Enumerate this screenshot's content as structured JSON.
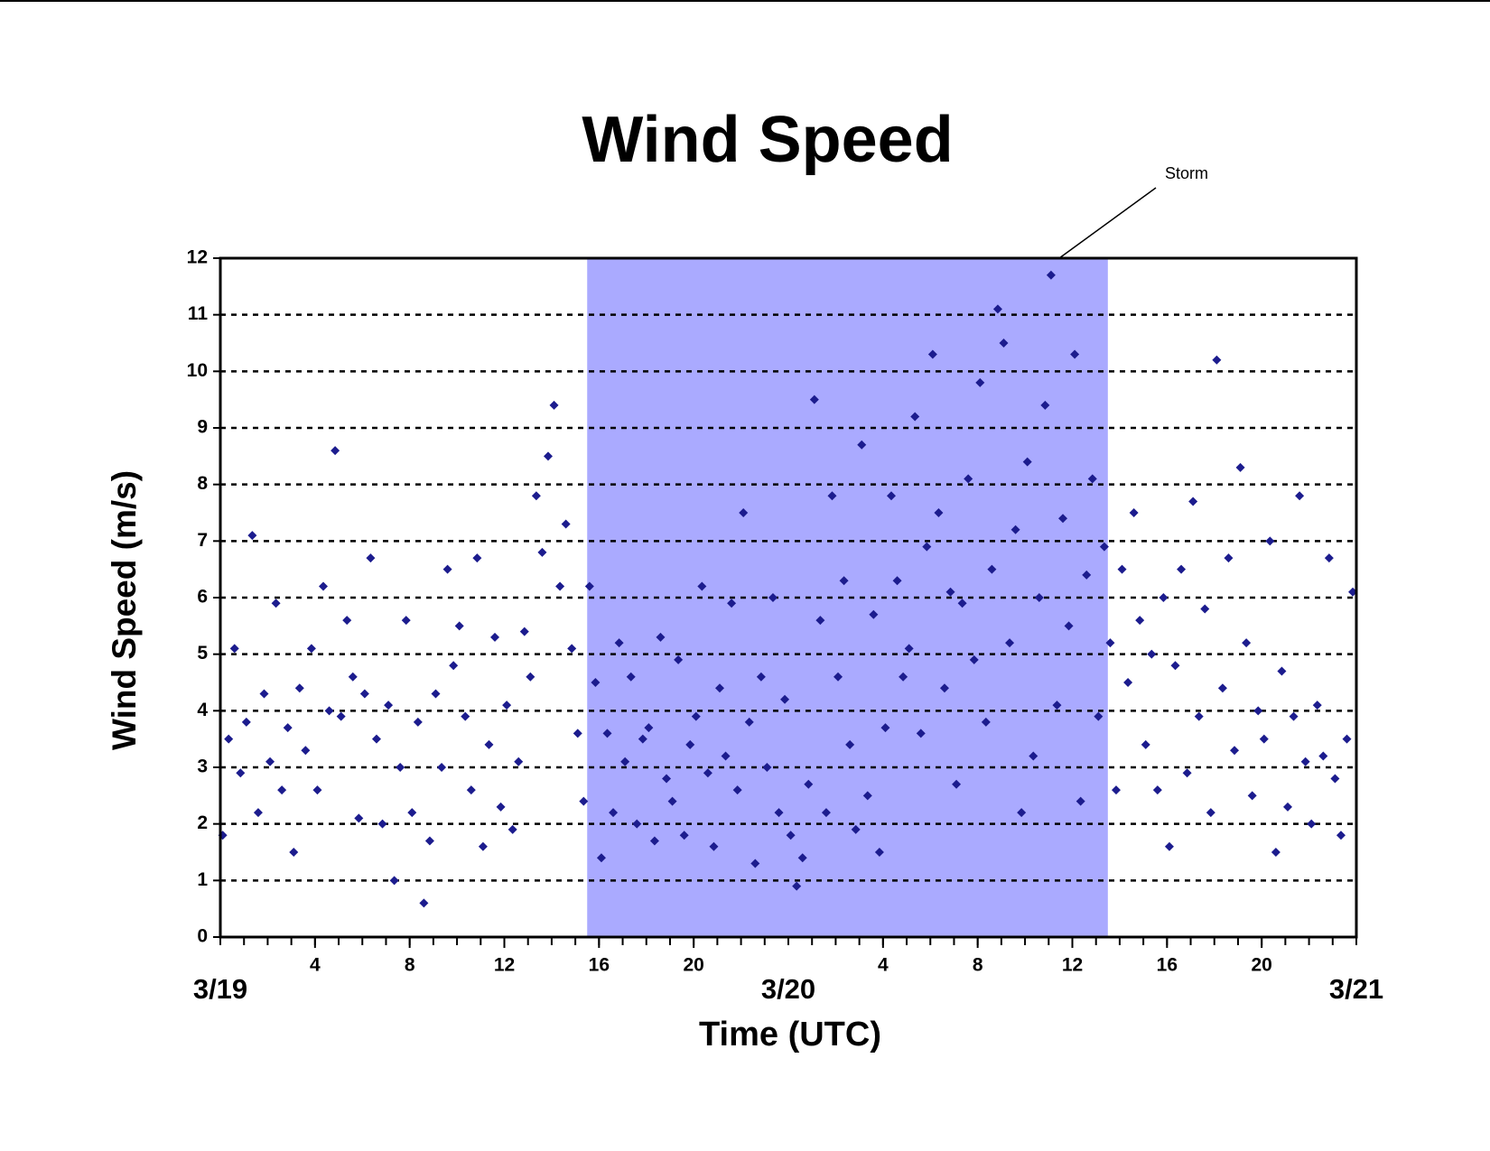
{
  "chart_data": {
    "type": "scatter",
    "title": "Wind Speed",
    "xlabel": "Time (UTC)",
    "ylabel": "Wind Speed (m/s)",
    "xlim": [
      0,
      48
    ],
    "ylim": [
      0,
      12
    ],
    "yticks": [
      0,
      1,
      2,
      3,
      4,
      5,
      6,
      7,
      8,
      9,
      10,
      11,
      12
    ],
    "xticks": [
      4,
      8,
      12,
      {
        "value": 16,
        "label": "16"
      },
      20,
      {
        "value": 28,
        "label": "4"
      },
      {
        "value": 32,
        "label": "8"
      },
      {
        "value": 36,
        "label": "12"
      },
      {
        "value": 40,
        "label": "16"
      },
      {
        "value": 44,
        "label": "20"
      }
    ],
    "xminor_step": 1,
    "date_ticks": [
      {
        "value": 0,
        "label": "3/19"
      },
      {
        "value": 24,
        "label": "3/20"
      },
      {
        "value": 48,
        "label": "3/21"
      }
    ],
    "grid": true,
    "shaded_region": {
      "label": "Storm",
      "x": [
        15.5,
        37.5
      ],
      "color": "#aaaaff"
    },
    "series": [
      {
        "color": "#1c1c8e",
        "x": [
          0.1,
          0.35,
          0.6,
          0.85,
          1.1,
          1.35,
          1.6,
          1.85,
          2.1,
          2.35,
          2.6,
          2.85,
          3.1,
          3.35,
          3.6,
          3.85,
          4.1,
          4.35,
          4.6,
          4.85,
          5.1,
          5.35,
          5.6,
          5.85,
          6.1,
          6.35,
          6.6,
          6.85,
          7.1,
          7.35,
          7.6,
          7.85,
          8.1,
          8.35,
          8.6,
          8.85,
          9.1,
          9.35,
          9.6,
          9.85,
          10.1,
          10.35,
          10.6,
          10.85,
          11.1,
          11.35,
          11.6,
          11.85,
          12.1,
          12.35,
          12.6,
          12.85,
          13.1,
          13.35,
          13.6,
          13.85,
          14.1,
          14.35,
          14.6,
          14.85,
          15.1,
          15.35,
          15.6,
          15.85,
          16.1,
          16.35,
          16.6,
          16.85,
          17.1,
          17.35,
          17.6,
          17.85,
          18.1,
          18.35,
          18.6,
          18.85,
          19.1,
          19.35,
          19.6,
          19.85,
          20.1,
          20.35,
          20.6,
          20.85,
          21.1,
          21.35,
          21.6,
          21.85,
          22.1,
          22.35,
          22.6,
          22.85,
          23.1,
          23.35,
          23.6,
          23.85,
          24.1,
          24.35,
          24.6,
          24.85,
          25.1,
          25.35,
          25.6,
          25.85,
          26.1,
          26.35,
          26.6,
          26.85,
          27.1,
          27.35,
          27.6,
          27.85,
          28.1,
          28.35,
          28.6,
          28.85,
          29.1,
          29.35,
          29.6,
          29.85,
          30.1,
          30.35,
          30.6,
          30.85,
          31.1,
          31.35,
          31.6,
          31.85,
          32.1,
          32.35,
          32.6,
          32.85,
          33.1,
          33.35,
          33.6,
          33.85,
          34.1,
          34.35,
          34.6,
          34.85,
          35.1,
          35.35,
          35.6,
          35.85,
          36.1,
          36.35,
          36.6,
          36.85,
          37.1,
          37.35,
          37.6,
          37.85,
          38.1,
          38.35,
          38.6,
          38.85,
          39.1,
          39.35,
          39.6,
          39.85,
          40.1,
          40.35,
          40.6,
          40.85,
          41.1,
          41.35,
          41.6,
          41.85,
          42.1,
          42.35,
          42.6,
          42.85,
          43.1,
          43.35,
          43.6,
          43.85,
          44.1,
          44.35,
          44.6,
          44.85,
          45.1,
          45.35,
          45.6,
          45.85,
          46.1,
          46.35,
          46.6,
          46.85,
          47.1,
          47.35,
          47.6,
          47.85
        ],
        "values": [
          1.8,
          3.5,
          5.1,
          2.9,
          3.8,
          7.1,
          2.2,
          4.3,
          3.1,
          5.9,
          2.6,
          3.7,
          1.5,
          4.4,
          3.3,
          5.1,
          2.6,
          6.2,
          4.0,
          8.6,
          3.9,
          5.6,
          4.6,
          2.1,
          4.3,
          6.7,
          3.5,
          2.0,
          4.1,
          1.0,
          3.0,
          5.6,
          2.2,
          3.8,
          0.6,
          1.7,
          4.3,
          3.0,
          6.5,
          4.8,
          5.5,
          3.9,
          2.6,
          6.7,
          1.6,
          3.4,
          5.3,
          2.3,
          4.1,
          1.9,
          3.1,
          5.4,
          4.6,
          7.8,
          6.8,
          8.5,
          9.4,
          6.2,
          7.3,
          5.1,
          3.6,
          2.4,
          6.2,
          4.5,
          1.4,
          3.6,
          2.2,
          5.2,
          3.1,
          4.6,
          2.0,
          3.5,
          3.7,
          1.7,
          5.3,
          2.8,
          2.4,
          4.9,
          1.8,
          3.4,
          3.9,
          6.2,
          2.9,
          1.6,
          4.4,
          3.2,
          5.9,
          2.6,
          7.5,
          3.8,
          1.3,
          4.6,
          3.0,
          6.0,
          2.2,
          4.2,
          1.8,
          0.9,
          1.4,
          2.7,
          9.5,
          5.6,
          2.2,
          7.8,
          4.6,
          6.3,
          3.4,
          1.9,
          8.7,
          2.5,
          5.7,
          1.5,
          3.7,
          7.8,
          6.3,
          4.6,
          5.1,
          9.2,
          3.6,
          6.9,
          10.3,
          7.5,
          4.4,
          6.1,
          2.7,
          5.9,
          8.1,
          4.9,
          9.8,
          3.8,
          6.5,
          11.1,
          10.5,
          5.2,
          7.2,
          2.2,
          8.4,
          3.2,
          6.0,
          9.4,
          11.7,
          4.1,
          7.4,
          5.5,
          10.3,
          2.4,
          6.4,
          8.1,
          3.9,
          6.9,
          5.2,
          2.6,
          6.5,
          4.5,
          7.5,
          5.6,
          3.4,
          5.0,
          2.6,
          6.0,
          1.6,
          4.8,
          6.5,
          2.9,
          7.7,
          3.9,
          5.8,
          2.2,
          10.2,
          4.4,
          6.7,
          3.3,
          8.3,
          5.2,
          2.5,
          4.0,
          3.5,
          7.0,
          1.5,
          4.7,
          2.3,
          3.9,
          7.8,
          3.1,
          2.0,
          4.1,
          3.2,
          6.7,
          2.8,
          1.8,
          3.5,
          6.1
        ]
      }
    ]
  }
}
